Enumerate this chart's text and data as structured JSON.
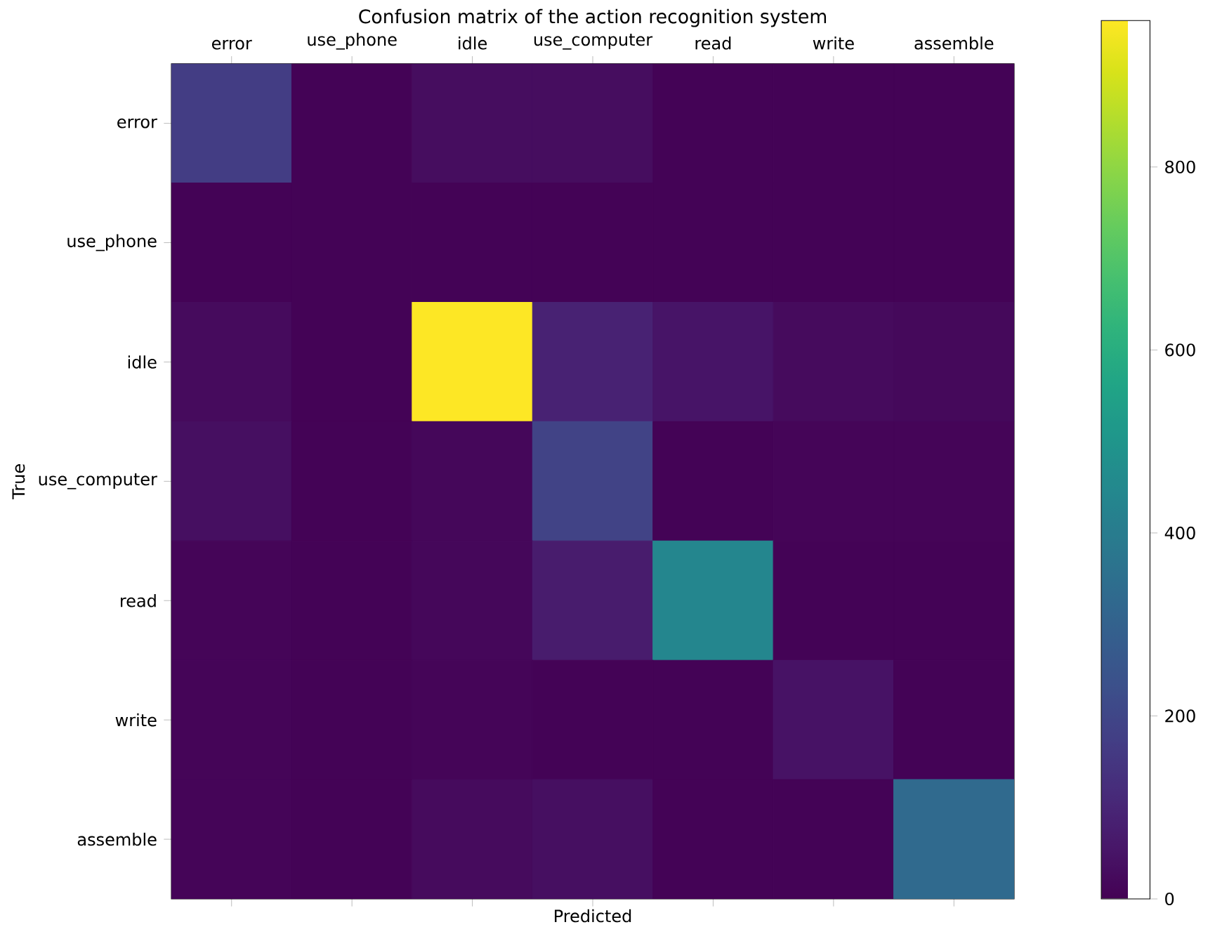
{
  "chart_data": {
    "type": "heatmap",
    "title": "Confusion matrix of the action recognition system",
    "xlabel": "Predicted",
    "ylabel": "True",
    "categories": [
      "error",
      "use_phone",
      "idle",
      "use_computer",
      "read",
      "write",
      "assemble"
    ],
    "y_categories": [
      "error",
      "use_phone",
      "idle",
      "use_computer",
      "read",
      "write",
      "assemble"
    ],
    "cells": [
      [
        170,
        5,
        30,
        30,
        5,
        5,
        5
      ],
      [
        5,
        5,
        5,
        5,
        5,
        5,
        5
      ],
      [
        25,
        5,
        960,
        90,
        50,
        25,
        20
      ],
      [
        35,
        5,
        15,
        190,
        5,
        10,
        10
      ],
      [
        10,
        5,
        15,
        70,
        440,
        5,
        5
      ],
      [
        10,
        5,
        10,
        5,
        5,
        45,
        5
      ],
      [
        10,
        5,
        25,
        35,
        5,
        5,
        330
      ]
    ],
    "clim": [
      0,
      960
    ],
    "cticks": [
      0,
      200,
      400,
      600,
      800
    ]
  }
}
